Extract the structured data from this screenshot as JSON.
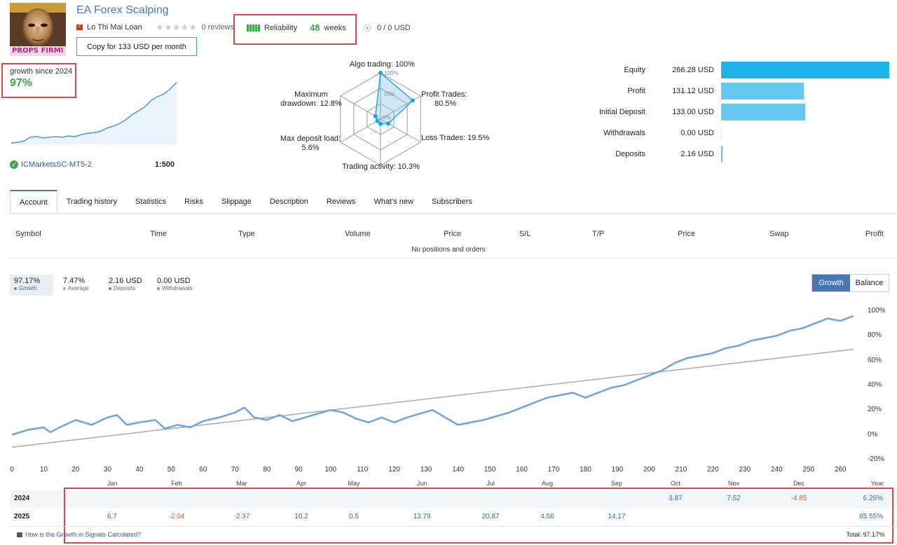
{
  "header": {
    "title": "EA Forex Scalping",
    "author": "Lo Thi Mai Loan",
    "reviews": "0 reviews",
    "reliability_label": "Reliability",
    "weeks_value": "48",
    "weeks_label": "weeks",
    "subscribers": "0 / 0 USD",
    "copy_button": "Copy for 133 USD per month",
    "avatar_text": "PROPS FIRMI"
  },
  "growth": {
    "label": "growth since 2024",
    "value": "97%",
    "broker": "ICMarketsSC-MT5-2",
    "leverage": "1:500",
    "sparkline": [
      2,
      3,
      5,
      11,
      12,
      10,
      11,
      12,
      11,
      13,
      12,
      15,
      17,
      18,
      20,
      25,
      28,
      32,
      38,
      46,
      52,
      58,
      68,
      74,
      78,
      86,
      96
    ]
  },
  "radar": {
    "axes": [
      {
        "label": "Algo trading: 100%",
        "value": 100
      },
      {
        "label": "Profit Trades: 80.5%",
        "value": 80.5
      },
      {
        "label": "Loss Trades: 19.5%",
        "value": 19.5
      },
      {
        "label": "Trading activity: 10.3%",
        "value": 10.3
      },
      {
        "label": "Max deposit load: 5.6%",
        "value": 5.6
      },
      {
        "label": "Maximum drawdown: 12.8%",
        "value": 12.8
      }
    ],
    "label_algo": "Algo trading: 100%",
    "label_profit_1": "Profit Trades:",
    "label_profit_2": "80.5%",
    "label_loss": "Loss Trades: 19.5%",
    "label_activity": "Trading activity: 10.3%",
    "label_load_1": "Max deposit load:",
    "label_load_2": "5.6%",
    "label_dd_1": "Maximum",
    "label_dd_2": "drawdown: 12.8%",
    "ring_100": "100%",
    "ring_50": "50%",
    "ring_0": "0%"
  },
  "stats": [
    {
      "name": "Equity",
      "value": "266.28 USD",
      "amount": 266.28
    },
    {
      "name": "Profit",
      "value": "131.12 USD",
      "amount": 131.12
    },
    {
      "name": "Initial Deposit",
      "value": "133.00 USD",
      "amount": 133.0
    },
    {
      "name": "Withdrawals",
      "value": "0.00 USD",
      "amount": 0
    },
    {
      "name": "Deposits",
      "value": "2.16 USD",
      "amount": 2.16
    }
  ],
  "tabs": [
    "Account",
    "Trading history",
    "Statistics",
    "Risks",
    "Slippage",
    "Description",
    "Reviews",
    "What's new",
    "Subscribers"
  ],
  "positions": {
    "headers": [
      "Symbol",
      "Time",
      "Type",
      "Volume",
      "Price",
      "S/L",
      "T/P",
      "Price",
      "Swap",
      "Profit"
    ],
    "empty": "No positions and orders"
  },
  "summary": {
    "growth_value": "97.17%",
    "growth_label": "Growth",
    "average_value": "7.47%",
    "average_label": "Average",
    "deposits_value": "2.16 USD",
    "deposits_label": "Deposits",
    "withdrawals_value": "0.00 USD",
    "withdrawals_label": "Withdrawals"
  },
  "buttons": {
    "growth": "Growth",
    "balance": "Balance"
  },
  "colors": {
    "accent": "#4a78b5",
    "growth_line": "#6aa5e0",
    "trend_line": "#aaaaaa",
    "positive": "#2b6fa8",
    "negative": "#d0562a",
    "equity_bar": "#1fb5ea",
    "bar": "#65c8ef"
  },
  "chart_data": {
    "type": "line",
    "x_ticks": [
      "0",
      "10",
      "20",
      "30",
      "40",
      "50",
      "60",
      "70",
      "80",
      "90",
      "100",
      "110",
      "120",
      "130",
      "140",
      "150",
      "160",
      "170",
      "180",
      "190",
      "200",
      "210",
      "220",
      "230",
      "240",
      "250",
      "260"
    ],
    "y_ticks": [
      "100%",
      "80%",
      "60%",
      "40%",
      "20%",
      "0%",
      "-20%"
    ],
    "months": [
      "Jan",
      "Feb",
      "Mar",
      "Apr",
      "May",
      "Jun",
      "Jul",
      "Aug",
      "Sep",
      "Oct",
      "Nov",
      "Dec",
      "Year"
    ],
    "ylim": [
      -20,
      100
    ],
    "xlim": [
      0,
      265
    ],
    "series": [
      {
        "name": "Growth",
        "x": [
          0,
          5,
          10,
          12,
          15,
          20,
          25,
          30,
          33,
          36,
          40,
          45,
          48,
          52,
          56,
          60,
          65,
          70,
          73,
          76,
          80,
          84,
          88,
          92,
          96,
          100,
          104,
          108,
          112,
          116,
          120,
          124,
          128,
          132,
          136,
          140,
          144,
          148,
          152,
          156,
          160,
          164,
          168,
          172,
          176,
          180,
          184,
          188,
          192,
          196,
          200,
          204,
          208,
          212,
          216,
          220,
          224,
          228,
          232,
          236,
          240,
          244,
          248,
          252,
          256,
          260,
          264
        ],
        "y": [
          0,
          4,
          6,
          2,
          6,
          12,
          8,
          14,
          16,
          8,
          10,
          12,
          5,
          8,
          6,
          11,
          14,
          18,
          22,
          14,
          12,
          16,
          11,
          14,
          17,
          20,
          18,
          13,
          10,
          14,
          10,
          14,
          17,
          20,
          14,
          8,
          10,
          12,
          15,
          18,
          22,
          26,
          30,
          32,
          34,
          30,
          34,
          38,
          40,
          44,
          48,
          52,
          58,
          62,
          64,
          66,
          70,
          72,
          76,
          78,
          80,
          84,
          86,
          90,
          94,
          92,
          96
        ]
      },
      {
        "name": "Average",
        "x": [
          0,
          264
        ],
        "y": [
          -10,
          69
        ]
      }
    ]
  },
  "monthly": {
    "rows": [
      {
        "year": "2024",
        "values": [
          "",
          "",
          "",
          "",
          "",
          "",
          "",
          "",
          "",
          "3.87",
          "7.52",
          "-4.85"
        ],
        "total": "6.26%"
      },
      {
        "year": "2025",
        "values": [
          "6.7",
          "-2.04",
          "-2.37",
          "10.2",
          "0.5",
          "13.79",
          "20.87",
          "4.56",
          "14.17",
          "",
          "",
          ""
        ],
        "total": "85.55%"
      }
    ],
    "how_link": "How is the Growth in Signals Calculated?",
    "total": "Total: 97.17%"
  }
}
